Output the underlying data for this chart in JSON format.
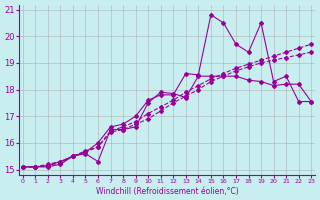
{
  "xlabel": "Windchill (Refroidissement éolien,°C)",
  "bg_color": "#c8eef0",
  "line_color": "#990099",
  "grid_color": "#aaaaaa",
  "xlim": [
    0,
    23
  ],
  "ylim": [
    14.8,
    21.2
  ],
  "xticks": [
    0,
    1,
    2,
    3,
    4,
    5,
    6,
    7,
    8,
    9,
    10,
    11,
    12,
    13,
    14,
    15,
    16,
    17,
    18,
    19,
    20,
    21,
    22,
    23
  ],
  "yticks": [
    15,
    16,
    17,
    18,
    19,
    20,
    21
  ],
  "series1": [
    [
      0,
      15.1
    ],
    [
      1,
      15.1
    ],
    [
      2,
      15.1
    ],
    [
      3,
      15.2
    ],
    [
      4,
      15.5
    ],
    [
      5,
      15.6
    ],
    [
      6,
      15.3
    ],
    [
      7,
      16.5
    ],
    [
      8,
      16.5
    ],
    [
      9,
      16.6
    ],
    [
      10,
      17.5
    ],
    [
      11,
      17.9
    ],
    [
      12,
      17.85
    ],
    [
      13,
      17.7
    ],
    [
      14,
      18.5
    ],
    [
      15,
      18.5
    ],
    [
      16,
      18.5
    ],
    [
      17,
      18.5
    ],
    [
      18,
      18.35
    ],
    [
      19,
      18.3
    ],
    [
      20,
      18.15
    ],
    [
      21,
      18.2
    ],
    [
      22,
      18.2
    ],
    [
      23,
      17.55
    ]
  ],
  "series2": [
    [
      0,
      15.1
    ],
    [
      1,
      15.1
    ],
    [
      2,
      15.15
    ],
    [
      3,
      15.25
    ],
    [
      4,
      15.5
    ],
    [
      5,
      15.7
    ],
    [
      6,
      15.85
    ],
    [
      7,
      16.4
    ],
    [
      8,
      16.5
    ],
    [
      9,
      16.7
    ],
    [
      10,
      16.9
    ],
    [
      11,
      17.2
    ],
    [
      12,
      17.5
    ],
    [
      13,
      17.75
    ],
    [
      14,
      18.0
    ],
    [
      15,
      18.3
    ],
    [
      16,
      18.5
    ],
    [
      17,
      18.7
    ],
    [
      18,
      18.85
    ],
    [
      19,
      19.0
    ],
    [
      20,
      19.1
    ],
    [
      21,
      19.2
    ],
    [
      22,
      19.3
    ],
    [
      23,
      19.4
    ]
  ],
  "series3": [
    [
      0,
      15.1
    ],
    [
      1,
      15.1
    ],
    [
      2,
      15.15
    ],
    [
      3,
      15.3
    ],
    [
      4,
      15.5
    ],
    [
      5,
      15.65
    ],
    [
      6,
      16.0
    ],
    [
      7,
      16.6
    ],
    [
      8,
      16.7
    ],
    [
      9,
      17.0
    ],
    [
      10,
      17.6
    ],
    [
      11,
      17.8
    ],
    [
      12,
      17.8
    ],
    [
      13,
      18.6
    ],
    [
      14,
      18.55
    ],
    [
      15,
      20.8
    ],
    [
      16,
      20.5
    ],
    [
      17,
      19.7
    ],
    [
      18,
      19.4
    ],
    [
      19,
      20.5
    ],
    [
      20,
      18.3
    ],
    [
      21,
      18.5
    ],
    [
      22,
      17.55
    ],
    [
      23,
      17.55
    ]
  ],
  "series4": [
    [
      0,
      15.1
    ],
    [
      1,
      15.1
    ],
    [
      2,
      15.2
    ],
    [
      3,
      15.3
    ],
    [
      4,
      15.5
    ],
    [
      5,
      15.65
    ],
    [
      6,
      15.85
    ],
    [
      7,
      16.45
    ],
    [
      8,
      16.6
    ],
    [
      9,
      16.8
    ],
    [
      10,
      17.1
    ],
    [
      11,
      17.35
    ],
    [
      12,
      17.6
    ],
    [
      13,
      17.9
    ],
    [
      14,
      18.15
    ],
    [
      15,
      18.4
    ],
    [
      16,
      18.6
    ],
    [
      17,
      18.8
    ],
    [
      18,
      18.95
    ],
    [
      19,
      19.1
    ],
    [
      20,
      19.25
    ],
    [
      21,
      19.4
    ],
    [
      22,
      19.55
    ],
    [
      23,
      19.7
    ]
  ]
}
